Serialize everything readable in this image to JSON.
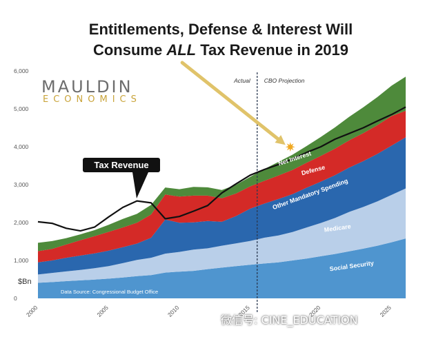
{
  "title_line1": "Entitlements, Defense & Interest Will",
  "title_line2_pre": "Consume ",
  "title_line2_em": "ALL",
  "title_line2_post": " Tax Revenue in 2019",
  "logo_line1": "MAULDIN",
  "logo_line2": "ECONOMICS",
  "watermark": "微信号: CINE_EDUCATION",
  "colors": {
    "social_security": "#4f95cf",
    "medicare": "#b9cfe9",
    "other_mandatory": "#2a67ae",
    "defense": "#d42a27",
    "net_interest": "#4e8a3b",
    "tax_revenue": "#111111",
    "arrow": "#e0c36a"
  },
  "chart_data": {
    "type": "area",
    "ylabel": "$Bn",
    "ylim": [
      0,
      6000
    ],
    "xlim": [
      2000,
      2026
    ],
    "y_ticks": [
      "0",
      "1,000",
      "2,000",
      "3,000",
      "4,000",
      "5,000",
      "6,000"
    ],
    "x_ticks": [
      "2000",
      "2005",
      "2010",
      "2015",
      "2020",
      "2025"
    ],
    "x_tick_values": [
      2000,
      2005,
      2010,
      2015,
      2020,
      2025
    ],
    "actual_label": "Actual",
    "projection_label": "CBO Projection",
    "divider_x": 2015.5,
    "source": "Data Source: Congressional Budget Office",
    "callout": "Tax Revenue",
    "x": [
      2000,
      2001,
      2002,
      2003,
      2004,
      2005,
      2006,
      2007,
      2008,
      2009,
      2010,
      2011,
      2012,
      2013,
      2014,
      2015,
      2016,
      2017,
      2018,
      2019,
      2020,
      2021,
      2022,
      2023,
      2024,
      2025,
      2026
    ],
    "stacked_series": [
      {
        "key": "social_security",
        "name": "Social Security",
        "values": [
          410,
          430,
          455,
          475,
          495,
          520,
          550,
          585,
          615,
          680,
          705,
          725,
          770,
          810,
          850,
          885,
          920,
          950,
          1000,
          1050,
          1110,
          1170,
          1240,
          1310,
          1390,
          1480,
          1580
        ]
      },
      {
        "key": "medicare",
        "name": "Medicare",
        "values": [
          220,
          240,
          255,
          275,
          300,
          330,
          380,
          430,
          455,
          500,
          520,
          560,
          550,
          580,
          600,
          630,
          680,
          710,
          750,
          820,
          880,
          950,
          1040,
          1100,
          1170,
          1250,
          1320
        ]
      },
      {
        "key": "other_mandatory",
        "name": "Other Mandatory Spending",
        "values": [
          320,
          330,
          360,
          380,
          390,
          410,
          420,
          430,
          530,
          900,
          770,
          720,
          720,
          630,
          720,
          850,
          900,
          960,
          1000,
          1050,
          1090,
          1130,
          1170,
          1210,
          1250,
          1300,
          1350
        ]
      },
      {
        "key": "defense",
        "name": "Defense",
        "values": [
          295,
          305,
          350,
          405,
          455,
          495,
          520,
          550,
          615,
          660,
          690,
          705,
          670,
          620,
          595,
          590,
          600,
          620,
          640,
          660,
          680,
          700,
          720,
          740,
          760,
          780,
          700
        ]
      },
      {
        "key": "net_interest",
        "name": "Net Interest",
        "values": [
          220,
          205,
          170,
          155,
          160,
          185,
          225,
          235,
          250,
          185,
          195,
          230,
          220,
          220,
          230,
          250,
          310,
          360,
          400,
          440,
          500,
          560,
          620,
          680,
          740,
          800,
          900
        ]
      }
    ],
    "line_series": {
      "key": "tax_revenue",
      "name": "Tax Revenue",
      "values": [
        2020,
        1980,
        1850,
        1780,
        1880,
        2150,
        2400,
        2570,
        2520,
        2100,
        2160,
        2300,
        2450,
        2780,
        3020,
        3250,
        3400,
        3530,
        3680,
        3850,
        4000,
        4200,
        4350,
        4500,
        4680,
        4850,
        5050
      ]
    },
    "data_labels": [
      {
        "text": "Social Security",
        "x": 2022.2,
        "y": 800,
        "angle": -8
      },
      {
        "text": "Medicare",
        "x": 2021.2,
        "y": 1800,
        "angle": -8
      },
      {
        "text": "Other Mandatory Spending",
        "x": 2019.3,
        "y": 2700,
        "angle": -20
      },
      {
        "text": "Defense",
        "x": 2019.5,
        "y": 3330,
        "angle": -15
      },
      {
        "text": "Net Interest",
        "x": 2018.2,
        "y": 3640,
        "angle": -18
      }
    ],
    "arrow": {
      "from": [
        2010.2,
        6220
      ],
      "to": [
        2017.5,
        4050
      ]
    }
  }
}
